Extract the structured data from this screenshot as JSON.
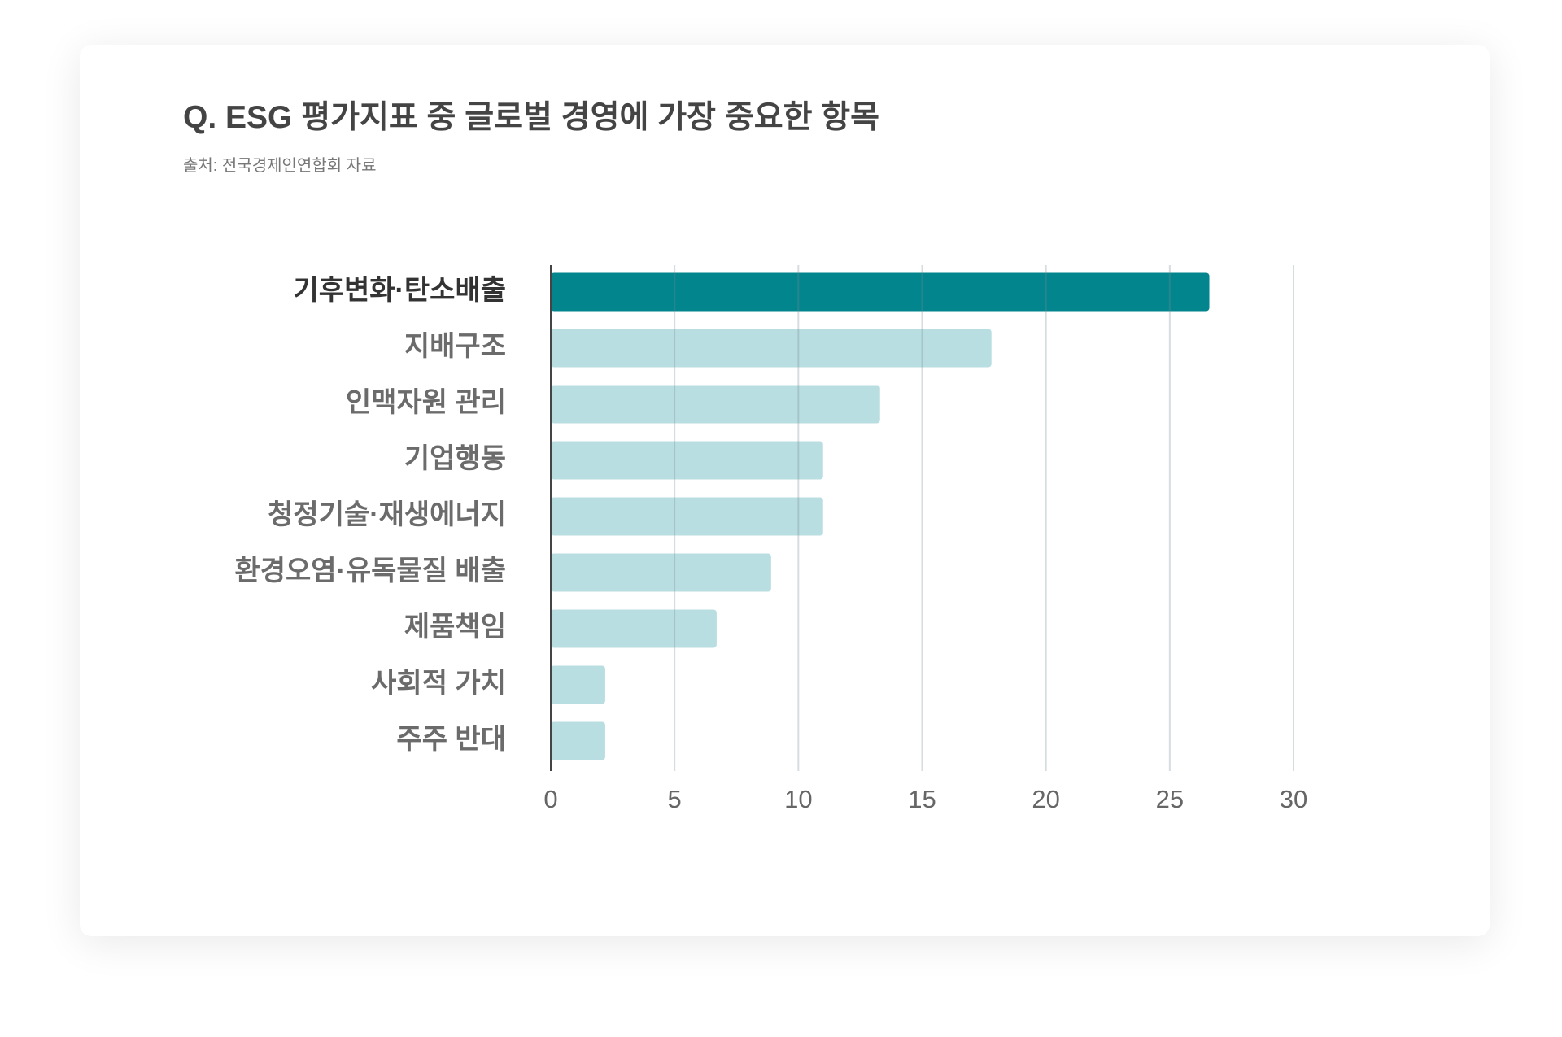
{
  "chart_data": {
    "type": "bar",
    "orientation": "horizontal",
    "title": "Q. ESG 평가지표 중 글로벌 경영에 가장 중요한 항목",
    "subtitle": "출처: 전국경제인연합회 자료",
    "categories": [
      "기후변화·탄소배출",
      "지배구조",
      "인맥자원 관리",
      "기업행동",
      "청정기술·재생에너지",
      "환경오염·유독물질 배출",
      "제품책임",
      "사회적 가치",
      "주주 반대"
    ],
    "values": [
      26.6,
      17.8,
      13.3,
      11.0,
      11.0,
      8.9,
      6.7,
      2.2,
      2.2
    ],
    "colors": [
      "#03858e",
      "#b9dee2",
      "#b9dee2",
      "#b9dee2",
      "#b9dee2",
      "#b9dee2",
      "#b9dee2",
      "#b9dee2",
      "#b9dee2"
    ],
    "xlim": [
      0,
      30
    ],
    "xticks": [
      0,
      5,
      10,
      15,
      20,
      25,
      30
    ],
    "grid": true
  }
}
